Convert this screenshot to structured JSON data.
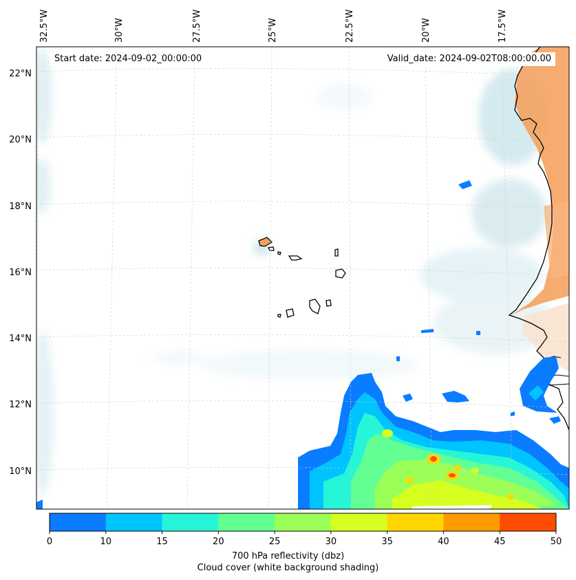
{
  "map": {
    "start_date": "Start date: 2024-09-02_00:00:00",
    "valid_date": "Valid_date: 2024-09-02T08:00:00.00",
    "lon_labels": [
      "32.5°W",
      "30°W",
      "27.5°W",
      "25°W",
      "22.5°W",
      "20°W",
      "17.5°W"
    ],
    "lat_labels": [
      "22°N",
      "20°N",
      "18°N",
      "16°N",
      "14°N",
      "12°N",
      "10°N"
    ],
    "gridlines": "dashed",
    "region": "Cabo Verde and West African coast"
  },
  "colorbar": {
    "ticks": [
      "0",
      "10",
      "15",
      "20",
      "25",
      "30",
      "35",
      "40",
      "45",
      "50"
    ],
    "colors": [
      "#0a7cff",
      "#00c4ff",
      "#27f5d8",
      "#62ff92",
      "#9cff57",
      "#d6ff1f",
      "#ffd600",
      "#ff9a00",
      "#ff4d00"
    ],
    "label_line1": "700 hPa reflectivity (dbz)",
    "label_line2": "Cloud cover (white background shading)"
  },
  "colors": {
    "land": "#f5a25f",
    "cloud": "#cfe8ee"
  }
}
